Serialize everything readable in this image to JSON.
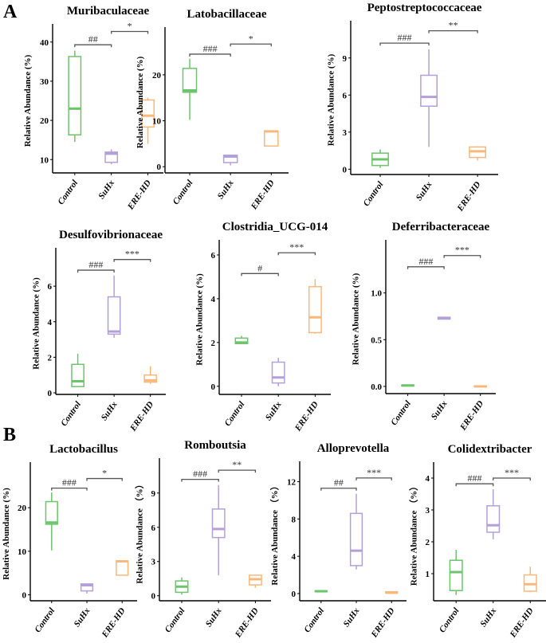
{
  "panel_labels": [
    "A",
    "B"
  ],
  "colors": {
    "Control": "#6cc46c",
    "SuHx": "#b4a0d8",
    "ERE-HD": "#f9b87a",
    "axis": "#000000",
    "bracket": "#555555"
  },
  "chart_data": [
    {
      "type": "box",
      "title": "Muribaculaceae",
      "ylabel": "Relative Abundance (%)",
      "categories": [
        "Control",
        "SuHx",
        "ERE-HD"
      ],
      "ylim": [
        7,
        43
      ],
      "yticks": [
        10,
        20,
        30,
        40
      ],
      "boxes": [
        {
          "min": 14.5,
          "q1": 16.3,
          "median": 23,
          "q3": 36.3,
          "max": 37.8
        },
        {
          "min": 8.8,
          "q1": 9.3,
          "median": 11.5,
          "q3": 11.9,
          "max": 12.6
        },
        {
          "min": 14,
          "q1": 18.3,
          "median": 21.2,
          "q3": 25.2,
          "max": 25.8
        }
      ],
      "significance": [
        {
          "from": "Control",
          "to": "SuHx",
          "label": "##",
          "y": 39.3
        },
        {
          "from": "SuHx",
          "to": "ERE-HD",
          "label": "*",
          "y": 42.7
        }
      ]
    },
    {
      "type": "box",
      "title": "Latobacillaceae",
      "ylabel": "Relative Abundance (%)",
      "categories": [
        "Control",
        "SuHx",
        "ERE-HD"
      ],
      "ylim": [
        -1,
        29
      ],
      "yticks": [
        0,
        10,
        20
      ],
      "boxes": [
        {
          "min": 10.2,
          "q1": 16.2,
          "median": 16.6,
          "q3": 21.4,
          "max": 23.5
        },
        {
          "min": 0.3,
          "q1": 0.9,
          "median": 2.2,
          "q3": 2.5,
          "max": 2.5
        },
        {
          "min": 4.5,
          "q1": 4.5,
          "median": 7.7,
          "q3": 7.8,
          "max": 7.8
        }
      ],
      "significance": [
        {
          "from": "Control",
          "to": "SuHx",
          "label": "###",
          "y": 24.5
        },
        {
          "from": "SuHx",
          "to": "ERE-HD",
          "label": "*",
          "y": 26.7
        }
      ]
    },
    {
      "type": "box",
      "title": "Peptostreptococcaceae",
      "ylabel": "Relative Abundance (%)",
      "categories": [
        "Control",
        "SuHx",
        "ERE-HD"
      ],
      "ylim": [
        -0.3,
        11.5
      ],
      "yticks": [
        0,
        3,
        6,
        9
      ],
      "boxes": [
        {
          "min": 0.1,
          "q1": 0.3,
          "median": 0.8,
          "q3": 1.3,
          "max": 1.6
        },
        {
          "min": 1.8,
          "q1": 5.1,
          "median": 5.85,
          "q3": 7.6,
          "max": 9.7
        },
        {
          "min": 0.7,
          "q1": 0.95,
          "median": 1.45,
          "q3": 1.8,
          "max": 1.85
        }
      ],
      "significance": [
        {
          "from": "Control",
          "to": "SuHx",
          "label": "###",
          "y": 10.2
        },
        {
          "from": "SuHx",
          "to": "ERE-HD",
          "label": "**",
          "y": 11.2
        }
      ]
    },
    {
      "type": "box",
      "title": "Desulfovibrionaceae",
      "ylabel": "Relative Abundance (%)",
      "categories": [
        "Control",
        "SuHx",
        "ERE-HD"
      ],
      "ylim": [
        0,
        7.8
      ],
      "yticks": [
        0,
        2,
        4,
        6
      ],
      "boxes": [
        {
          "min": 0.35,
          "q1": 0.35,
          "median": 0.65,
          "q3": 1.6,
          "max": 2.2
        },
        {
          "min": 3.1,
          "q1": 3.3,
          "median": 3.45,
          "q3": 5.4,
          "max": 6.6
        },
        {
          "min": 0.5,
          "q1": 0.6,
          "median": 0.7,
          "q3": 1.0,
          "max": 1.5
        }
      ],
      "significance": [
        {
          "from": "Control",
          "to": "SuHx",
          "label": "###",
          "y": 6.9
        },
        {
          "from": "SuHx",
          "to": "ERE-HD",
          "label": "***",
          "y": 7.5
        }
      ]
    },
    {
      "type": "box",
      "title": "Clostridia_UCG-014",
      "ylabel": "Relative Abundance (%)",
      "categories": [
        "Control",
        "SuHx",
        "ERE-HD"
      ],
      "ylim": [
        -0.3,
        6.4
      ],
      "yticks": [
        0,
        2,
        4,
        6
      ],
      "boxes": [
        {
          "min": 1.95,
          "q1": 1.95,
          "median": 2.0,
          "q3": 2.2,
          "max": 2.3
        },
        {
          "min": 0.0,
          "q1": 0.15,
          "median": 0.4,
          "q3": 1.1,
          "max": 1.3
        },
        {
          "min": 2.4,
          "q1": 2.45,
          "median": 3.15,
          "q3": 4.55,
          "max": 4.9
        }
      ],
      "significance": [
        {
          "from": "Control",
          "to": "SuHx",
          "label": "#",
          "y": 5.15
        },
        {
          "from": "SuHx",
          "to": "ERE-HD",
          "label": "***",
          "y": 6.1
        }
      ]
    },
    {
      "type": "box",
      "title": "Deferribacteraceae",
      "ylabel": "Relative Abundance (%)",
      "categories": [
        "Control",
        "SuHx",
        "ERE-HD"
      ],
      "ylim": [
        -0.06,
        1.5
      ],
      "yticks": [
        0.0,
        0.5,
        1.0
      ],
      "ytick_labels": [
        "0.0",
        "0.5",
        "1.0"
      ],
      "boxes": [
        {
          "min": 0.0,
          "q1": 0.005,
          "median": 0.01,
          "q3": 0.015,
          "max": 0.02
        },
        {
          "min": 0.72,
          "q1": 0.72,
          "median": 0.73,
          "q3": 0.74,
          "max": 0.74
        },
        {
          "min": 0.0,
          "q1": 0.0,
          "median": 0.0,
          "q3": 0.005,
          "max": 0.005
        }
      ],
      "significance": [
        {
          "from": "Control",
          "to": "SuHx",
          "label": "###",
          "y": 1.28
        },
        {
          "from": "SuHx",
          "to": "ERE-HD",
          "label": "***",
          "y": 1.4
        }
      ]
    },
    {
      "type": "box",
      "title": "Lactobacillus",
      "ylabel": "Relative Abundance (%)",
      "categories": [
        "Control",
        "SuHx",
        "ERE-HD"
      ],
      "ylim": [
        -1,
        29
      ],
      "yticks": [
        0,
        10,
        20
      ],
      "boxes": [
        {
          "min": 10.2,
          "q1": 16.2,
          "median": 16.6,
          "q3": 21.4,
          "max": 23.5
        },
        {
          "min": 0.3,
          "q1": 0.9,
          "median": 2.2,
          "q3": 2.5,
          "max": 2.5
        },
        {
          "min": 4.5,
          "q1": 4.5,
          "median": 7.7,
          "q3": 7.8,
          "max": 7.8
        }
      ],
      "significance": [
        {
          "from": "Control",
          "to": "SuHx",
          "label": "###",
          "y": 24.5
        },
        {
          "from": "SuHx",
          "to": "ERE-HD",
          "label": "*",
          "y": 26.7
        }
      ]
    },
    {
      "type": "box",
      "title": "Romboutsia",
      "ylabel": "Relative Abundance （%）",
      "categories": [
        "Control",
        "SuHx",
        "ERE-HD"
      ],
      "ylim": [
        -0.3,
        11.5
      ],
      "yticks": [
        0,
        3,
        6,
        9
      ],
      "boxes": [
        {
          "min": 0.1,
          "q1": 0.3,
          "median": 0.8,
          "q3": 1.3,
          "max": 1.6
        },
        {
          "min": 1.8,
          "q1": 5.1,
          "median": 5.85,
          "q3": 7.6,
          "max": 9.7
        },
        {
          "min": 0.7,
          "q1": 0.95,
          "median": 1.45,
          "q3": 1.8,
          "max": 1.85
        }
      ],
      "significance": [
        {
          "from": "Control",
          "to": "SuHx",
          "label": "###",
          "y": 10.2
        },
        {
          "from": "SuHx",
          "to": "ERE-HD",
          "label": "**",
          "y": 11.0
        }
      ]
    },
    {
      "type": "box",
      "title": "Alloprevotella",
      "ylabel": "Relative Abundance （%）",
      "categories": [
        "Control",
        "SuHx",
        "ERE-HD"
      ],
      "ylim": [
        -0.6,
        13.5
      ],
      "yticks": [
        0,
        4,
        8,
        12
      ],
      "boxes": [
        {
          "min": 0.2,
          "q1": 0.2,
          "median": 0.25,
          "q3": 0.3,
          "max": 0.3
        },
        {
          "min": 2.6,
          "q1": 3.0,
          "median": 4.6,
          "q3": 8.6,
          "max": 10.7
        },
        {
          "min": 0.0,
          "q1": 0.05,
          "median": 0.1,
          "q3": 0.2,
          "max": 0.2
        }
      ],
      "significance": [
        {
          "from": "Control",
          "to": "SuHx",
          "label": "##",
          "y": 11.3
        },
        {
          "from": "SuHx",
          "to": "ERE-HD",
          "label": "***",
          "y": 12.4
        }
      ]
    },
    {
      "type": "box",
      "title": "Colidextribacter",
      "ylabel": "Relative Abundance （%）",
      "categories": [
        "Control",
        "SuHx",
        "ERE-HD"
      ],
      "ylim": [
        0.2,
        4.3
      ],
      "yticks": [
        1,
        2,
        3,
        4
      ],
      "boxes": [
        {
          "min": 0.33,
          "q1": 0.47,
          "median": 1.05,
          "q3": 1.42,
          "max": 1.75
        },
        {
          "min": 2.08,
          "q1": 2.3,
          "median": 2.52,
          "q3": 3.13,
          "max": 3.65
        },
        {
          "min": 0.42,
          "q1": 0.45,
          "median": 0.67,
          "q3": 0.96,
          "max": 1.22
        }
      ],
      "significance": [
        {
          "from": "Control",
          "to": "SuHx",
          "label": "###",
          "y": 3.82
        },
        {
          "from": "SuHx",
          "to": "ERE-HD",
          "label": "***",
          "y": 4.0
        }
      ]
    }
  ]
}
